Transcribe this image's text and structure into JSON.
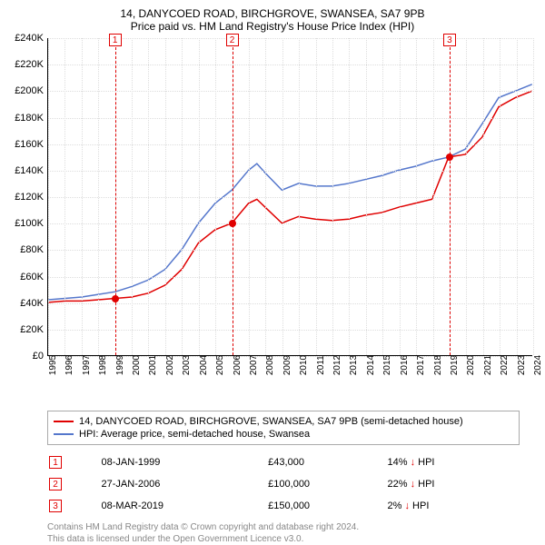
{
  "title": "14, DANYCOED ROAD, BIRCHGROVE, SWANSEA, SA7 9PB",
  "subtitle": "Price paid vs. HM Land Registry's House Price Index (HPI)",
  "chart": {
    "type": "line",
    "ylim": [
      0,
      240000
    ],
    "ytick_step": 20000,
    "xlim": [
      1995,
      2024
    ],
    "background_color": "#ffffff",
    "grid_color": "#dddddd",
    "ylabel_currency": "£",
    "yticks": [
      "£0",
      "£20K",
      "£40K",
      "£60K",
      "£80K",
      "£100K",
      "£120K",
      "£140K",
      "£160K",
      "£180K",
      "£200K",
      "£220K",
      "£240K"
    ],
    "xticks": [
      "1995",
      "1996",
      "1997",
      "1998",
      "1999",
      "2000",
      "2001",
      "2002",
      "2003",
      "2004",
      "2005",
      "2006",
      "2007",
      "2008",
      "2009",
      "2010",
      "2011",
      "2012",
      "2013",
      "2014",
      "2015",
      "2016",
      "2017",
      "2018",
      "2019",
      "2020",
      "2021",
      "2022",
      "2023",
      "2024"
    ],
    "tick_fontsize": 11,
    "series": [
      {
        "name": "price_paid",
        "color": "#e00000",
        "width": 1.5,
        "data": [
          [
            1995,
            40000
          ],
          [
            1996,
            41000
          ],
          [
            1997,
            41000
          ],
          [
            1998,
            42000
          ],
          [
            1999,
            43000
          ],
          [
            2000,
            44000
          ],
          [
            2001,
            47000
          ],
          [
            2002,
            53000
          ],
          [
            2003,
            65000
          ],
          [
            2004,
            85000
          ],
          [
            2005,
            95000
          ],
          [
            2006,
            100000
          ],
          [
            2007,
            115000
          ],
          [
            2007.5,
            118000
          ],
          [
            2008,
            112000
          ],
          [
            2009,
            100000
          ],
          [
            2010,
            105000
          ],
          [
            2011,
            103000
          ],
          [
            2012,
            102000
          ],
          [
            2013,
            103000
          ],
          [
            2014,
            106000
          ],
          [
            2015,
            108000
          ],
          [
            2016,
            112000
          ],
          [
            2017,
            115000
          ],
          [
            2018,
            118000
          ],
          [
            2019,
            150000
          ],
          [
            2020,
            152000
          ],
          [
            2021,
            165000
          ],
          [
            2022,
            188000
          ],
          [
            2023,
            195000
          ],
          [
            2024,
            200000
          ]
        ]
      },
      {
        "name": "hpi",
        "color": "#5577cc",
        "width": 1.5,
        "data": [
          [
            1995,
            42000
          ],
          [
            1996,
            43000
          ],
          [
            1997,
            44000
          ],
          [
            1998,
            46000
          ],
          [
            1999,
            48000
          ],
          [
            2000,
            52000
          ],
          [
            2001,
            57000
          ],
          [
            2002,
            65000
          ],
          [
            2003,
            80000
          ],
          [
            2004,
            100000
          ],
          [
            2005,
            115000
          ],
          [
            2006,
            125000
          ],
          [
            2007,
            140000
          ],
          [
            2007.5,
            145000
          ],
          [
            2008,
            138000
          ],
          [
            2009,
            125000
          ],
          [
            2010,
            130000
          ],
          [
            2011,
            128000
          ],
          [
            2012,
            128000
          ],
          [
            2013,
            130000
          ],
          [
            2014,
            133000
          ],
          [
            2015,
            136000
          ],
          [
            2016,
            140000
          ],
          [
            2017,
            143000
          ],
          [
            2018,
            147000
          ],
          [
            2019,
            150000
          ],
          [
            2020,
            156000
          ],
          [
            2021,
            175000
          ],
          [
            2022,
            195000
          ],
          [
            2023,
            200000
          ],
          [
            2024,
            205000
          ]
        ]
      }
    ],
    "events": [
      {
        "n": "1",
        "year": 1999,
        "price": 43000,
        "color": "#e00000"
      },
      {
        "n": "2",
        "year": 2006,
        "price": 100000,
        "color": "#e00000"
      },
      {
        "n": "3",
        "year": 2019,
        "price": 150000,
        "color": "#e00000"
      }
    ]
  },
  "legend": {
    "items": [
      {
        "color": "#e00000",
        "label": "14, DANYCOED ROAD, BIRCHGROVE, SWANSEA, SA7 9PB (semi-detached house)"
      },
      {
        "color": "#5577cc",
        "label": "HPI: Average price, semi-detached house, Swansea"
      }
    ]
  },
  "events_table": [
    {
      "n": "1",
      "color": "#e00000",
      "date": "08-JAN-1999",
      "price": "£43,000",
      "pct": "14%",
      "dir": "↓",
      "suffix": "HPI"
    },
    {
      "n": "2",
      "color": "#e00000",
      "date": "27-JAN-2006",
      "price": "£100,000",
      "pct": "22%",
      "dir": "↓",
      "suffix": "HPI"
    },
    {
      "n": "3",
      "color": "#e00000",
      "date": "08-MAR-2019",
      "price": "£150,000",
      "pct": "2%",
      "dir": "↓",
      "suffix": "HPI"
    }
  ],
  "footer": {
    "line1": "Contains HM Land Registry data © Crown copyright and database right 2024.",
    "line2": "This data is licensed under the Open Government Licence v3.0."
  }
}
